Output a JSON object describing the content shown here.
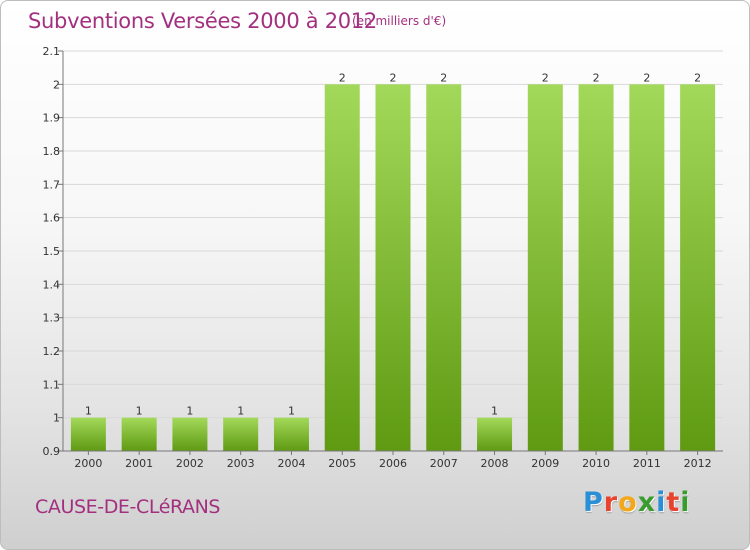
{
  "header": {
    "title": "Subventions Versées 2000 à 2012",
    "unit_note": "(en milliers d'€)"
  },
  "footer": {
    "commune": "CAUSE-DE-CLéRANS",
    "logo_letters": [
      "P",
      "r",
      "o",
      "x",
      "i",
      "t",
      "i"
    ],
    "logo_colors": [
      "#2a8fd6",
      "#e8432e",
      "#f3a81b",
      "#3a9b2e",
      "#2a8fd6",
      "#e8432e",
      "#3a9b2e"
    ]
  },
  "colors": {
    "bar_top": "#a3d95a",
    "bar_bottom": "#5f9a12",
    "axis": "#777777",
    "grid": "#d9d9d9"
  },
  "chart_data": {
    "type": "bar",
    "title": "Subventions Versées 2000 à 2012",
    "xlabel": "",
    "ylabel": "",
    "categories": [
      "2000",
      "2001",
      "2002",
      "2003",
      "2004",
      "2005",
      "2006",
      "2007",
      "2008",
      "2009",
      "2010",
      "2011",
      "2012"
    ],
    "values": [
      1,
      1,
      1,
      1,
      1,
      2,
      2,
      2,
      1,
      2,
      2,
      2,
      2
    ],
    "data_labels": [
      "1",
      "1",
      "1",
      "1",
      "1",
      "2",
      "2",
      "2",
      "1",
      "2",
      "2",
      "2",
      "2"
    ],
    "ylim": [
      0.9,
      2.1
    ],
    "yticks": [
      0.9,
      1,
      1.1,
      1.2,
      1.3,
      1.4,
      1.5,
      1.6,
      1.7,
      1.8,
      1.9,
      2,
      2.1
    ],
    "ytick_labels": [
      "0.9",
      "1",
      "1.1",
      "1.2",
      "1.3",
      "1.4",
      "1.5",
      "1.6",
      "1.7",
      "1.8",
      "1.9",
      "2",
      "2.1"
    ],
    "grid": true,
    "legend": "none"
  }
}
